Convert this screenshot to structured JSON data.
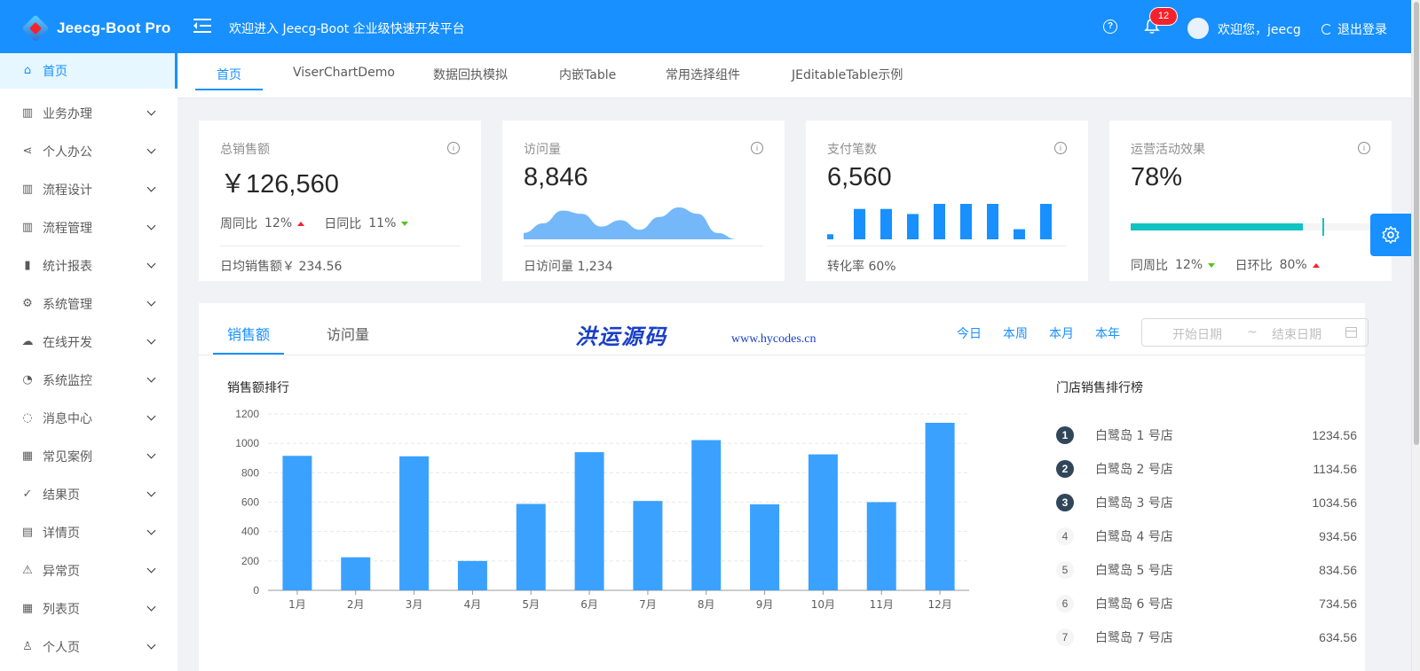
{
  "app": {
    "title": "Jeecg-Boot Pro",
    "welcome": "欢迎进入 Jeecg-Boot 企业级快速开发平台"
  },
  "header": {
    "notification_count": "12",
    "user_greeting": "欢迎您，jeecg",
    "logout_label": "退出登录",
    "help_icon": "question-circle-icon",
    "bell_icon": "bell-icon"
  },
  "sidebar": {
    "items": [
      {
        "label": "首页",
        "icon": "home-icon",
        "active": true
      },
      {
        "label": "业务办理",
        "icon": "apartment-icon"
      },
      {
        "label": "个人办公",
        "icon": "share-icon"
      },
      {
        "label": "流程设计",
        "icon": "apartment-icon"
      },
      {
        "label": "流程管理",
        "icon": "apartment-icon"
      },
      {
        "label": "统计报表",
        "icon": "bar-chart-icon"
      },
      {
        "label": "系统管理",
        "icon": "setting-icon"
      },
      {
        "label": "在线开发",
        "icon": "cloud-icon"
      },
      {
        "label": "系统监控",
        "icon": "dashboard-icon"
      },
      {
        "label": "消息中心",
        "icon": "message-icon"
      },
      {
        "label": "常见案例",
        "icon": "qrcode-icon"
      },
      {
        "label": "结果页",
        "icon": "check-circle-icon"
      },
      {
        "label": "详情页",
        "icon": "profile-icon"
      },
      {
        "label": "异常页",
        "icon": "warning-icon"
      },
      {
        "label": "列表页",
        "icon": "table-icon"
      },
      {
        "label": "个人页",
        "icon": "user-icon"
      }
    ]
  },
  "tabs": [
    "首页",
    "ViserChartDemo",
    "数据回执模拟",
    "内嵌Table",
    "常用选择组件",
    "JEditableTable示例"
  ],
  "cards": [
    {
      "title": "总销售额",
      "value": "￥126,560",
      "week_label": "周同比",
      "week_value": "12%",
      "day_label": "日同比",
      "day_value": "11%",
      "footer": "日均销售额￥ 234.56"
    },
    {
      "title": "访问量",
      "value": "8,846",
      "footer": "日访问量 1,234"
    },
    {
      "title": "支付笔数",
      "value": "6,560",
      "footer": "转化率 60%"
    },
    {
      "title": "运营活动效果",
      "value": "78%",
      "week_label": "同周比",
      "week_value": "12%",
      "day_label": "日环比",
      "day_value": "80%",
      "progress": 0.78
    }
  ],
  "colors": {
    "primary": "#1890ff",
    "bar": "#3aa1ff",
    "progress": "#13c2c2",
    "up": "#f5222d",
    "down": "#52c41a",
    "area": "#74b8f9"
  },
  "visits_trend": [
    2,
    5,
    9,
    8,
    4,
    6,
    3,
    7,
    10,
    8,
    2,
    0
  ],
  "payments_trend": [
    1,
    6,
    6,
    5,
    7,
    7,
    7,
    2,
    7,
    5
  ],
  "panel": {
    "tabs": [
      "销售额",
      "访问量"
    ],
    "watermark": "洪运源码",
    "watermark_url": "www.hycodes.cn",
    "periods": [
      "今日",
      "本周",
      "本月",
      "本年"
    ],
    "range": {
      "start_placeholder": "开始日期",
      "separator": "~",
      "end_placeholder": "结束日期"
    },
    "chart_title": "销售额排行",
    "ranking_title": "门店销售排行榜",
    "ranking": [
      {
        "rank": "1",
        "name": "白鹭岛 1 号店",
        "value": "1234.56"
      },
      {
        "rank": "2",
        "name": "白鹭岛 2 号店",
        "value": "1134.56"
      },
      {
        "rank": "3",
        "name": "白鹭岛 3 号店",
        "value": "1034.56"
      },
      {
        "rank": "4",
        "name": "白鹭岛 4 号店",
        "value": "934.56"
      },
      {
        "rank": "5",
        "name": "白鹭岛 5 号店",
        "value": "834.56"
      },
      {
        "rank": "6",
        "name": "白鹭岛 6 号店",
        "value": "734.56"
      },
      {
        "rank": "7",
        "name": "白鹭岛 7 号店",
        "value": "634.56"
      }
    ]
  },
  "chart_data": {
    "type": "bar",
    "title": "销售额排行",
    "categories": [
      "1月",
      "2月",
      "3月",
      "4月",
      "5月",
      "6月",
      "7月",
      "8月",
      "9月",
      "10月",
      "11月",
      "12月"
    ],
    "values": [
      915,
      225,
      912,
      200,
      588,
      940,
      608,
      1022,
      585,
      925,
      600,
      1140
    ],
    "yticks": [
      "0",
      "200",
      "400",
      "600",
      "800",
      "1000",
      "1200"
    ],
    "ylim": [
      0,
      1200
    ],
    "grid": true
  }
}
